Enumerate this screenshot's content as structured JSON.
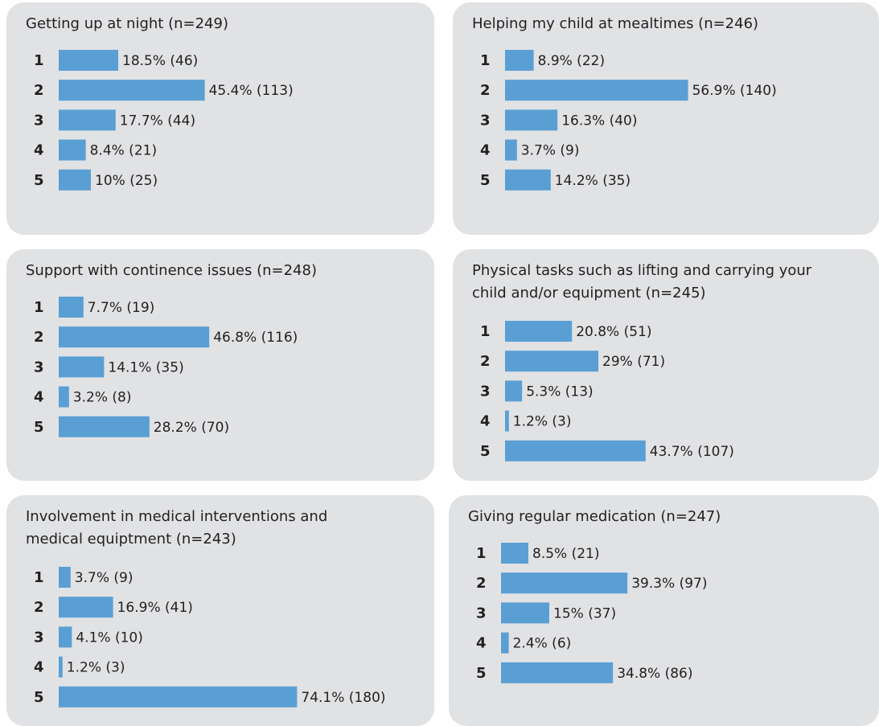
{
  "chart_data": [
    {
      "type": "bar",
      "title": [
        "Getting up at night (n=249)"
      ],
      "color": "#5a9fd4",
      "categories": [
        "1",
        "2",
        "3",
        "4",
        "5"
      ],
      "values": [
        18.5,
        45.4,
        17.7,
        8.4,
        10
      ],
      "value_labels": [
        "18.5% (46)",
        "45.4% (113)",
        "17.7% (44)",
        "8.4% (21)",
        "10% (25)"
      ]
    },
    {
      "type": "bar",
      "title": [
        "Helping my child at mealtimes (n=246)"
      ],
      "color": "#5a9fd4",
      "categories": [
        "1",
        "2",
        "3",
        "4",
        "5"
      ],
      "values": [
        8.9,
        56.9,
        16.3,
        3.7,
        14.2
      ],
      "value_labels": [
        "8.9% (22)",
        "56.9% (140)",
        "16.3% (40)",
        "3.7% (9)",
        "14.2% (35)"
      ]
    },
    {
      "type": "bar",
      "title": [
        "Support with continence issues (n=248)"
      ],
      "color": "#5a9fd4",
      "categories": [
        "1",
        "2",
        "3",
        "4",
        "5"
      ],
      "values": [
        7.7,
        46.8,
        14.1,
        3.2,
        28.2
      ],
      "value_labels": [
        "7.7% (19)",
        "46.8% (116)",
        "14.1% (35)",
        "3.2% (8)",
        "28.2% (70)"
      ]
    },
    {
      "type": "bar",
      "title": [
        "Physical tasks such as lifting and carrying your",
        "child and/or equipment (n=245)"
      ],
      "color": "#5a9fd4",
      "categories": [
        "1",
        "2",
        "3",
        "4",
        "5"
      ],
      "values": [
        20.8,
        29,
        5.3,
        1.2,
        43.7
      ],
      "value_labels": [
        "20.8% (51)",
        "29% (71)",
        "5.3% (13)",
        "1.2% (3)",
        "43.7% (107)"
      ]
    },
    {
      "type": "bar",
      "title": [
        "Involvement in medical interventions and",
        "medical equiptment (n=243)"
      ],
      "color": "#5a9fd4",
      "categories": [
        "1",
        "2",
        "3",
        "4",
        "5"
      ],
      "values": [
        3.7,
        16.9,
        4.1,
        1.2,
        74.1
      ],
      "value_labels": [
        "3.7% (9)",
        "16.9% (41)",
        "4.1% (10)",
        "1.2% (3)",
        "74.1% (180)"
      ]
    },
    {
      "type": "bar",
      "title": [
        "Giving regular medication (n=247)"
      ],
      "color": "#5a9fd4",
      "categories": [
        "1",
        "2",
        "3",
        "4",
        "5"
      ],
      "values": [
        8.5,
        39.3,
        15,
        2.4,
        34.8
      ],
      "value_labels": [
        "8.5% (21)",
        "39.3% (97)",
        "15% (37)",
        "2.4% (6)",
        "34.8% (86)"
      ]
    }
  ]
}
